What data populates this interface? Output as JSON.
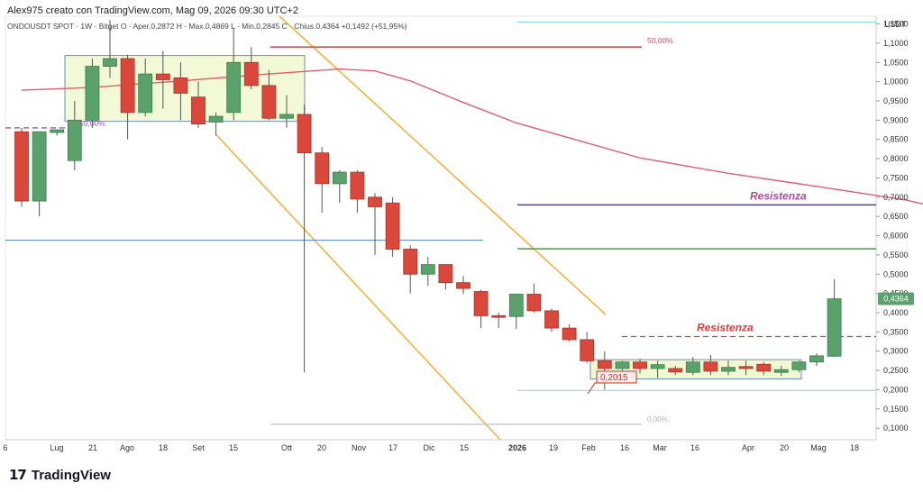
{
  "header": {
    "author_line": "Alex975 creato con TradingView.com, Mag 09, 2026 09:30 UTC+2",
    "symbol_line": "ONDOUSDT SPOT · 1W · Bitget",
    "ohlc": "O · Aper.0,2872  H · Max.0,4869  L · Min.0,2845  C · Chius.0,4364  +0,1492 (+51,95%)"
  },
  "brand": {
    "logo_mark": "17",
    "name": "TradingView"
  },
  "chart_data": {
    "type": "candlestick",
    "currency": "USDT",
    "ylim": [
      0.07,
      1.17
    ],
    "y_ticks": [
      "1,1500",
      "1,1000",
      "1,0500",
      "1,0000",
      "0,9500",
      "0,9000",
      "0,8500",
      "0,8000",
      "0,7500",
      "0,7000",
      "0,6500",
      "0,6000",
      "0,5500",
      "0,5000",
      "0,4500",
      "0,4000",
      "0,3500",
      "0,3000",
      "0,2500",
      "0,2000",
      "0,1500",
      "0,1000"
    ],
    "x_ticks": [
      "6",
      "Lug",
      "21",
      "Ago",
      "18",
      "Set",
      "15",
      "Ott",
      "20",
      "Nov",
      "17",
      "Dic",
      "15",
      "2026",
      "19",
      "Feb",
      "16",
      "Mar",
      "16",
      "Apr",
      "20",
      "Mag",
      "18"
    ],
    "last_price_label": "0,4364",
    "candles": [
      {
        "o": 0.87,
        "h": 0.88,
        "l": 0.675,
        "c": 0.69
      },
      {
        "o": 0.69,
        "h": 0.87,
        "l": 0.65,
        "c": 0.87
      },
      {
        "o": 0.868,
        "h": 0.875,
        "l": 0.86,
        "c": 0.875
      },
      {
        "o": 0.795,
        "h": 0.95,
        "l": 0.77,
        "c": 0.9
      },
      {
        "o": 0.9,
        "h": 1.06,
        "l": 0.88,
        "c": 1.04
      },
      {
        "o": 1.04,
        "h": 1.16,
        "l": 1.01,
        "c": 1.06
      },
      {
        "o": 1.06,
        "h": 1.07,
        "l": 0.85,
        "c": 0.92
      },
      {
        "o": 0.92,
        "h": 1.06,
        "l": 0.91,
        "c": 1.02
      },
      {
        "o": 1.02,
        "h": 1.08,
        "l": 0.93,
        "c": 1.005
      },
      {
        "o": 1.01,
        "h": 1.05,
        "l": 0.9,
        "c": 0.97
      },
      {
        "o": 0.96,
        "h": 1.0,
        "l": 0.88,
        "c": 0.89
      },
      {
        "o": 0.895,
        "h": 0.92,
        "l": 0.86,
        "c": 0.91
      },
      {
        "o": 0.92,
        "h": 1.14,
        "l": 0.9,
        "c": 1.05
      },
      {
        "o": 1.05,
        "h": 1.09,
        "l": 0.98,
        "c": 0.99
      },
      {
        "o": 0.99,
        "h": 1.03,
        "l": 0.9,
        "c": 0.905
      },
      {
        "o": 0.905,
        "h": 0.965,
        "l": 0.88,
        "c": 0.915
      },
      {
        "o": 0.915,
        "h": 0.94,
        "l": 0.245,
        "c": 0.815
      },
      {
        "o": 0.815,
        "h": 0.83,
        "l": 0.66,
        "c": 0.735
      },
      {
        "o": 0.735,
        "h": 0.77,
        "l": 0.685,
        "c": 0.765
      },
      {
        "o": 0.765,
        "h": 0.77,
        "l": 0.66,
        "c": 0.695
      },
      {
        "o": 0.7,
        "h": 0.71,
        "l": 0.55,
        "c": 0.675
      },
      {
        "o": 0.685,
        "h": 0.7,
        "l": 0.545,
        "c": 0.565
      },
      {
        "o": 0.565,
        "h": 0.575,
        "l": 0.45,
        "c": 0.5
      },
      {
        "o": 0.5,
        "h": 0.545,
        "l": 0.47,
        "c": 0.525
      },
      {
        "o": 0.525,
        "h": 0.525,
        "l": 0.46,
        "c": 0.478
      },
      {
        "o": 0.478,
        "h": 0.495,
        "l": 0.448,
        "c": 0.463
      },
      {
        "o": 0.455,
        "h": 0.46,
        "l": 0.36,
        "c": 0.392
      },
      {
        "o": 0.392,
        "h": 0.4,
        "l": 0.36,
        "c": 0.388
      },
      {
        "o": 0.39,
        "h": 0.448,
        "l": 0.358,
        "c": 0.448
      },
      {
        "o": 0.448,
        "h": 0.475,
        "l": 0.4,
        "c": 0.405
      },
      {
        "o": 0.405,
        "h": 0.41,
        "l": 0.35,
        "c": 0.36
      },
      {
        "o": 0.36,
        "h": 0.37,
        "l": 0.325,
        "c": 0.33
      },
      {
        "o": 0.33,
        "h": 0.35,
        "l": 0.27,
        "c": 0.275
      },
      {
        "o": 0.275,
        "h": 0.3,
        "l": 0.2,
        "c": 0.255
      },
      {
        "o": 0.255,
        "h": 0.275,
        "l": 0.23,
        "c": 0.272
      },
      {
        "o": 0.272,
        "h": 0.28,
        "l": 0.242,
        "c": 0.255
      },
      {
        "o": 0.255,
        "h": 0.275,
        "l": 0.23,
        "c": 0.265
      },
      {
        "o": 0.255,
        "h": 0.262,
        "l": 0.238,
        "c": 0.246
      },
      {
        "o": 0.245,
        "h": 0.285,
        "l": 0.238,
        "c": 0.272
      },
      {
        "o": 0.272,
        "h": 0.29,
        "l": 0.238,
        "c": 0.248
      },
      {
        "o": 0.248,
        "h": 0.275,
        "l": 0.238,
        "c": 0.258
      },
      {
        "o": 0.26,
        "h": 0.275,
        "l": 0.238,
        "c": 0.255
      },
      {
        "o": 0.266,
        "h": 0.272,
        "l": 0.238,
        "c": 0.248
      },
      {
        "o": 0.245,
        "h": 0.262,
        "l": 0.236,
        "c": 0.252
      },
      {
        "o": 0.252,
        "h": 0.275,
        "l": 0.245,
        "c": 0.272
      },
      {
        "o": 0.272,
        "h": 0.295,
        "l": 0.262,
        "c": 0.288
      },
      {
        "o": 0.287,
        "h": 0.487,
        "l": 0.285,
        "c": 0.436
      }
    ],
    "moving_average": [
      [
        0,
        0.978
      ],
      [
        4,
        0.985
      ],
      [
        9,
        1.002
      ],
      [
        14,
        1.02
      ],
      [
        18,
        1.033
      ],
      [
        20,
        1.028
      ],
      [
        22,
        1.002
      ],
      [
        25,
        0.946
      ],
      [
        28,
        0.893
      ],
      [
        31,
        0.854
      ],
      [
        35,
        0.802
      ],
      [
        40,
        0.762
      ],
      [
        45,
        0.728
      ],
      [
        50,
        0.693
      ],
      [
        53,
        0.662
      ],
      [
        55,
        0.637
      ],
      [
        57.5,
        0.607
      ]
    ],
    "levels": [
      {
        "kind": "fib",
        "label": "50,00%",
        "price": 1.09
      },
      {
        "kind": "fib",
        "label": "50,00%",
        "price": 0.88
      },
      {
        "kind": "fib",
        "label": "0,00%",
        "price": 0.11
      },
      {
        "kind": "support",
        "price": 0.588
      },
      {
        "kind": "resistance",
        "label": "Resistenza",
        "price": 0.68
      },
      {
        "kind": "resistance",
        "label": "Resistenza",
        "price": 0.338
      },
      {
        "kind": "green",
        "price": 0.566
      },
      {
        "kind": "cyan",
        "price": 1.155
      },
      {
        "kind": "cyan",
        "price": 0.198
      }
    ],
    "annotations": {
      "low_price": "0,2015"
    }
  }
}
